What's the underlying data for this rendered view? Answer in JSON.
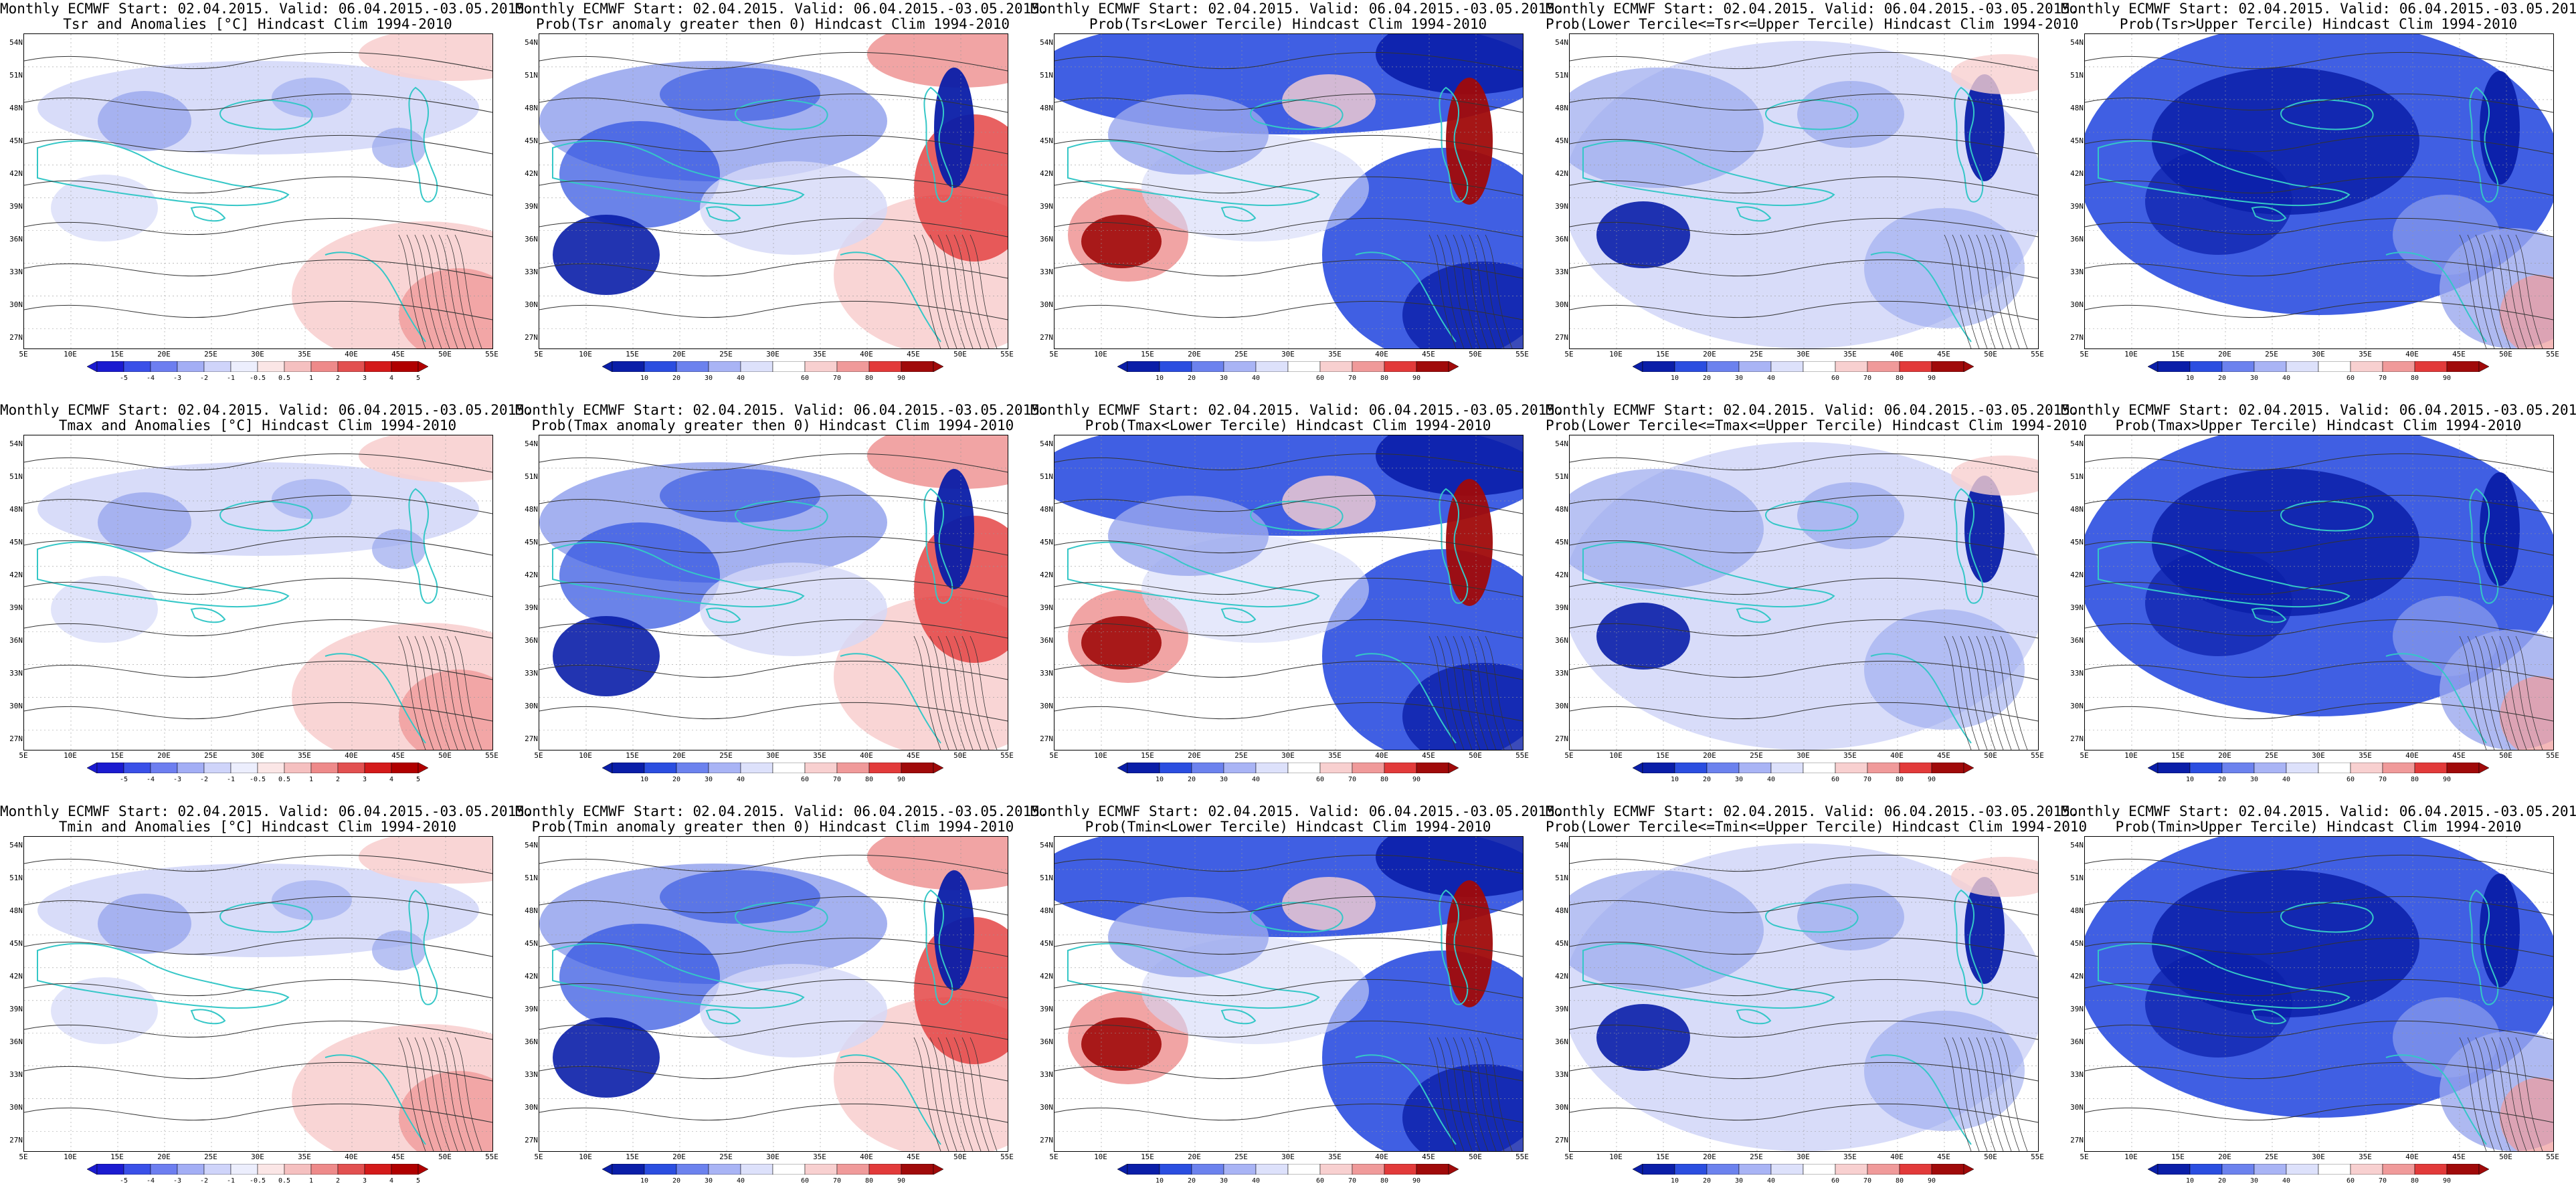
{
  "figure": {
    "title_line1": "Monthly ECMWF Start: 02.04.2015. Valid: 06.04.2015.-03.05.2015.",
    "lat_labels": [
      "54N",
      "51N",
      "48N",
      "45N",
      "42N",
      "39N",
      "36N",
      "33N",
      "30N",
      "27N"
    ],
    "lon_labels": [
      "5E",
      "10E",
      "15E",
      "20E",
      "25E",
      "30E",
      "35E",
      "40E",
      "45E",
      "50E",
      "55E"
    ],
    "anomaly_ticks": [
      "-5",
      "-4",
      "-3",
      "-2",
      "-1",
      "-0.5",
      "0.5",
      "1",
      "2",
      "3",
      "4",
      "5"
    ],
    "prob_ticks": [
      "10",
      "20",
      "30",
      "40",
      "60",
      "70",
      "80",
      "90"
    ]
  },
  "panels": [
    {
      "title2": "Tsr and Anomalies [°C] Hindcast Clim 1994-2010",
      "kind": "anomaly"
    },
    {
      "title2": "Prob(Tsr anomaly greater then 0) Hindcast Clim 1994-2010",
      "kind": "prob_gt0"
    },
    {
      "title2": "Prob(Tsr<Lower Tercile) Hindcast Clim 1994-2010",
      "kind": "prob_lower"
    },
    {
      "title2": "Prob(Lower Tercile<=Tsr<=Upper Tercile) Hindcast Clim 1994-2010",
      "kind": "prob_mid"
    },
    {
      "title2": "Prob(Tsr>Upper Tercile) Hindcast Clim 1994-2010",
      "kind": "prob_upper"
    },
    {
      "title2": "Tmax and Anomalies [°C] Hindcast Clim 1994-2010",
      "kind": "anomaly"
    },
    {
      "title2": "Prob(Tmax anomaly greater then 0) Hindcast Clim 1994-2010",
      "kind": "prob_gt0"
    },
    {
      "title2": "Prob(Tmax<Lower Tercile) Hindcast Clim 1994-2010",
      "kind": "prob_lower"
    },
    {
      "title2": "Prob(Lower Tercile<=Tmax<=Upper Tercile) Hindcast Clim 1994-2010",
      "kind": "prob_mid"
    },
    {
      "title2": "Prob(Tmax>Upper Tercile) Hindcast Clim 1994-2010",
      "kind": "prob_upper"
    },
    {
      "title2": "Tmin and Anomalies [°C] Hindcast Clim 1994-2010",
      "kind": "anomaly"
    },
    {
      "title2": "Prob(Tmin anomaly greater then 0) Hindcast Clim 1994-2010",
      "kind": "prob_gt0"
    },
    {
      "title2": "Prob(Tmin<Lower Tercile) Hindcast Clim 1994-2010",
      "kind": "prob_lower"
    },
    {
      "title2": "Prob(Lower Tercile<=Tmin<=Upper Tercile) Hindcast Clim 1994-2010",
      "kind": "prob_mid"
    },
    {
      "title2": "Prob(Tmin>Upper Tercile) Hindcast Clim 1994-2010",
      "kind": "prob_upper"
    }
  ],
  "colors": {
    "coast": "#35c7c7",
    "contour": "#333333",
    "blue_dark": "#0a1ea8",
    "blue_mid": "#2b4ee0",
    "blue_light": "#9aa8ee",
    "blue_pale": "#d4d8f8",
    "red_pale": "#f8d0d0",
    "red_light": "#f09a9a",
    "red_mid": "#e23a3a",
    "red_dark": "#a00a0a",
    "anomaly_bar": [
      "#1b1bd0",
      "#3a50e8",
      "#6d7ef0",
      "#a3aef5",
      "#cfd4fa",
      "#eceefd",
      "#fbe6e6",
      "#f5c0c0",
      "#ee8a8a",
      "#e25050",
      "#d41a1a",
      "#b00000"
    ],
    "prob_bar": [
      "#0a1ea8",
      "#2b4ee0",
      "#6c82ee",
      "#a9b4f5",
      "#dde1fb",
      "#ffffff",
      "#f8d0d0",
      "#f09a9a",
      "#e23a3a",
      "#a00a0a"
    ]
  }
}
